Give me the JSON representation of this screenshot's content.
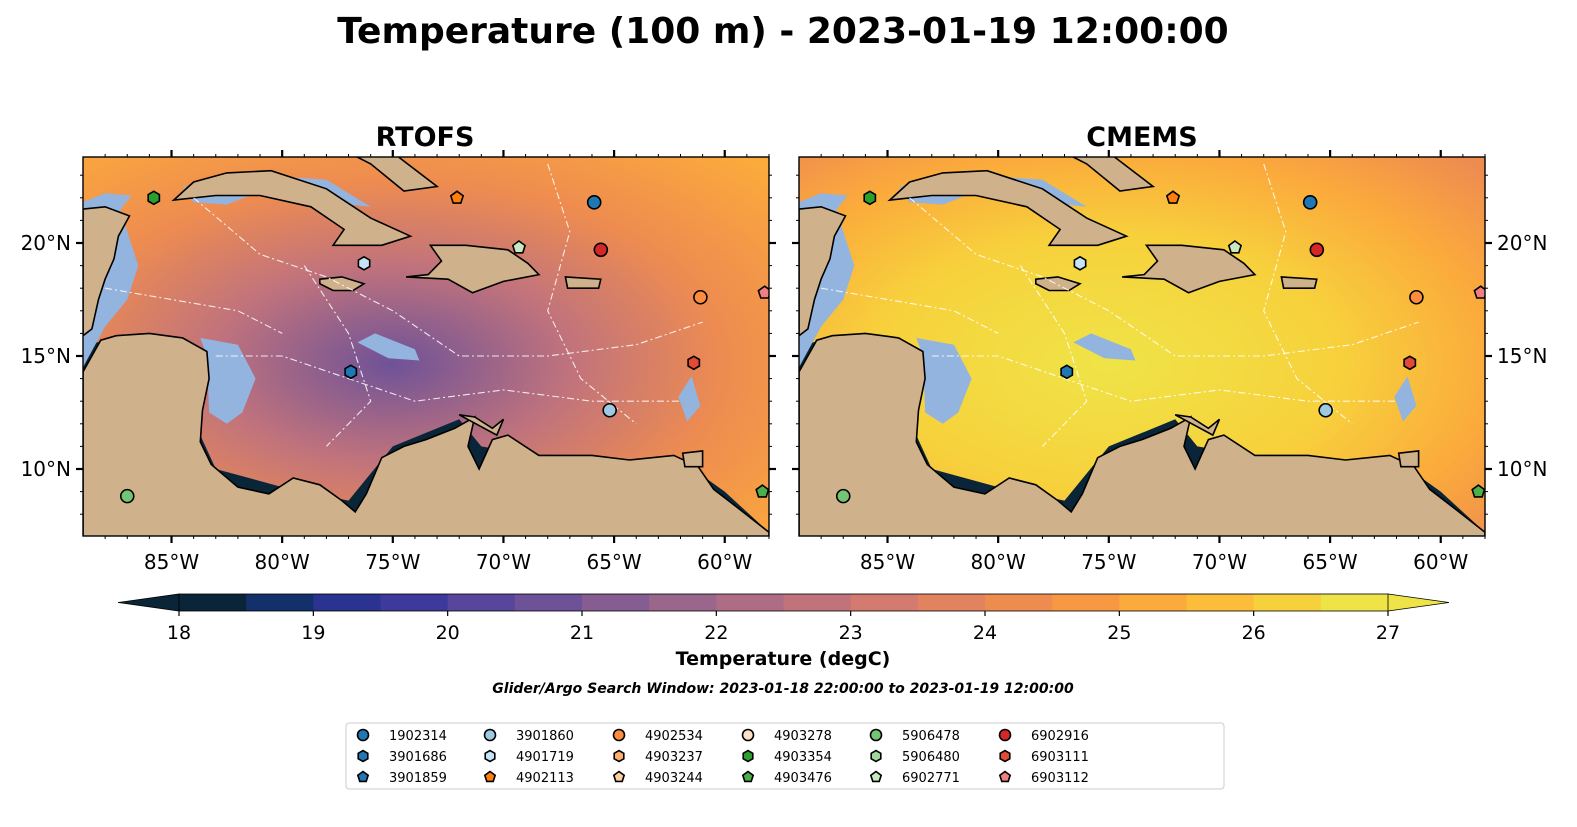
{
  "title": "Temperature (100 m) - 2023-01-19 12:00:00",
  "panels": [
    {
      "title": "RTOFS",
      "scheme": "rtofs"
    },
    {
      "title": "CMEMS",
      "scheme": "cmems"
    }
  ],
  "lon_ticks": [
    "85°W",
    "80°W",
    "75°W",
    "70°W",
    "65°W",
    "60°W"
  ],
  "lat_ticks": [
    "20°N",
    "15°N",
    "10°N"
  ],
  "colorbar": {
    "label": "Temperature (degC)",
    "ticks": [
      "18",
      "19",
      "20",
      "21",
      "22",
      "23",
      "24",
      "25",
      "26",
      "27"
    ],
    "min": 18,
    "max": 27,
    "step": 0.5,
    "colors": [
      "#0b2538",
      "#12306a",
      "#2a3390",
      "#3e3a9c",
      "#57469c",
      "#6e5298",
      "#855d93",
      "#9a668c",
      "#ae6d85",
      "#c1737c",
      "#d37b6f",
      "#e2835f",
      "#ee8c50",
      "#f89842",
      "#fbaa3c",
      "#fbbd3a",
      "#f7d13c",
      "#efe447"
    ],
    "extend": "both"
  },
  "search_window": "Glider/Argo Search Window: 2023-01-18 22:00:00 to 2023-01-19 12:00:00",
  "legend": [
    {
      "id": "1902314",
      "color": "#1f77b4",
      "marker": "circle"
    },
    {
      "id": "3901686",
      "color": "#1f77b4",
      "marker": "hexagon"
    },
    {
      "id": "3901859",
      "color": "#1f77b4",
      "marker": "pentagon"
    },
    {
      "id": "3901860",
      "color": "#9ecae1",
      "marker": "circle"
    },
    {
      "id": "4901719",
      "color": "#c6e3f7",
      "marker": "hexagon"
    },
    {
      "id": "4902113",
      "color": "#ff7f0e",
      "marker": "pentagon"
    },
    {
      "id": "4902534",
      "color": "#fd8d3c",
      "marker": "circle"
    },
    {
      "id": "4903237",
      "color": "#fdae6b",
      "marker": "hexagon"
    },
    {
      "id": "4903244",
      "color": "#fdd0a2",
      "marker": "pentagon"
    },
    {
      "id": "4903278",
      "color": "#fde0c5",
      "marker": "circle"
    },
    {
      "id": "4903354",
      "color": "#2ca02c",
      "marker": "hexagon"
    },
    {
      "id": "4903476",
      "color": "#4daf4a",
      "marker": "pentagon"
    },
    {
      "id": "5906478",
      "color": "#74c476",
      "marker": "circle"
    },
    {
      "id": "5906480",
      "color": "#a1d99b",
      "marker": "hexagon"
    },
    {
      "id": "6902771",
      "color": "#c7e9c0",
      "marker": "pentagon"
    },
    {
      "id": "6902916",
      "color": "#d62728",
      "marker": "circle"
    },
    {
      "id": "6903111",
      "color": "#e34a33",
      "marker": "hexagon"
    },
    {
      "id": "6903112",
      "color": "#f08080",
      "marker": "pentagon"
    }
  ],
  "map_colors": {
    "land": "#cfb28b",
    "shelf": "#93b4de",
    "pacific": "#0b2538",
    "border": "#000000"
  },
  "chart_data": {
    "type": "scatter",
    "title": "Temperature (100 m) - 2023-01-19 12:00:00",
    "xlabel": "",
    "ylabel": "",
    "xlim": [
      -89,
      -58
    ],
    "ylim": [
      7,
      24
    ],
    "points": [
      {
        "id": "1902314",
        "lon": -65.9,
        "lat": 21.8
      },
      {
        "id": "6902916",
        "lon": -65.6,
        "lat": 19.7
      },
      {
        "id": "4902113",
        "lon": -72.1,
        "lat": 22.0
      },
      {
        "id": "4903354",
        "lon": -85.8,
        "lat": 22.0
      },
      {
        "id": "6902771",
        "lon": -69.3,
        "lat": 19.8
      },
      {
        "id": "4901719",
        "lon": -76.3,
        "lat": 19.1
      },
      {
        "id": "4902534",
        "lon": -61.1,
        "lat": 17.6
      },
      {
        "id": "6903112",
        "lon": -58.2,
        "lat": 17.8
      },
      {
        "id": "6903111",
        "lon": -61.4,
        "lat": 14.7
      },
      {
        "id": "3901686",
        "lon": -76.9,
        "lat": 14.3
      },
      {
        "id": "3901860",
        "lon": -65.2,
        "lat": 12.6
      },
      {
        "id": "5906478",
        "lon": -87.0,
        "lat": 8.8
      },
      {
        "id": "4903476",
        "lon": -58.3,
        "lat": 9.0
      }
    ]
  }
}
